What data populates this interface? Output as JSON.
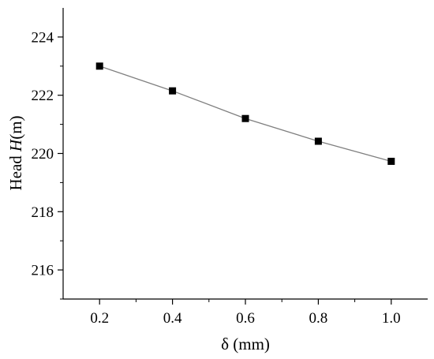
{
  "chart_data": {
    "type": "line",
    "x": [
      0.2,
      0.4,
      0.6,
      0.8,
      1.0
    ],
    "series": [
      {
        "values": [
          223.0,
          222.15,
          221.2,
          220.42,
          219.73
        ]
      }
    ],
    "xlabel": "δ (mm)",
    "ylabel_prefix": "Head ",
    "ylabel_symbol": "H",
    "ylabel_suffix": "(m)",
    "xlim": [
      0.1,
      1.1
    ],
    "ylim": [
      215,
      225
    ],
    "x_ticks": [
      "0.2",
      "0.4",
      "0.6",
      "0.8",
      "1.0"
    ],
    "y_ticks": [
      "216",
      "218",
      "220",
      "222",
      "224"
    ],
    "grid": false,
    "legend": "none",
    "line_color": "#7f7f7f",
    "marker_color": "#000000",
    "marker": "square"
  }
}
